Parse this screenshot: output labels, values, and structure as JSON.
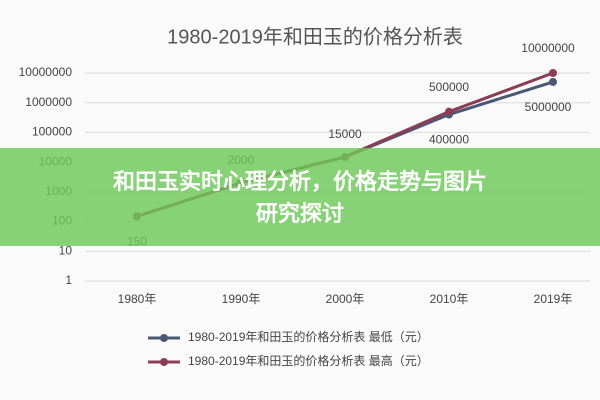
{
  "chart_data": {
    "type": "line",
    "title": "1980-2019年和田玉的价格分析表",
    "categories": [
      "1980年",
      "1990年",
      "2000年",
      "2010年",
      "2019年"
    ],
    "series": [
      {
        "name": "1980-2019年和田玉的价格分析表 最低（元）",
        "color": "#4a5874",
        "values": [
          150,
          2000,
          15000,
          400000,
          5000000
        ]
      },
      {
        "name": "1980-2019年和田玉的价格分析表 最高（元）",
        "color": "#8a3d55",
        "values": [
          150,
          2000,
          15000,
          500000,
          10000000
        ]
      }
    ],
    "log_y": true,
    "ylim": [
      1,
      10000000
    ],
    "yticks": [
      1,
      10,
      100,
      1000,
      10000,
      100000,
      1000000,
      10000000
    ],
    "grid": true,
    "legend": "bottom"
  },
  "banner": {
    "lines": [
      "和田玉实时心理分析，价格走势与图片",
      "研究探讨"
    ]
  }
}
